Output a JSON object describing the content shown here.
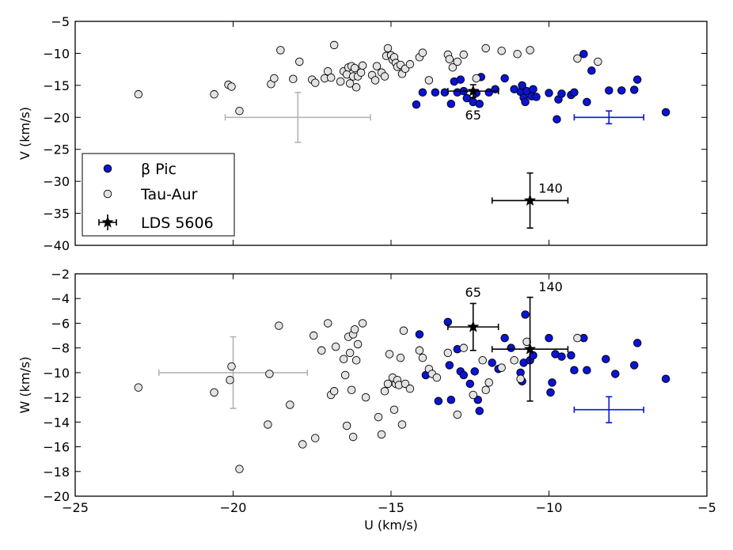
{
  "chart_data": [
    {
      "type": "scatter",
      "panel": "top",
      "xlabel": "",
      "ylabel": "V (km/s)",
      "xlim": [
        -25,
        -5
      ],
      "ylim": [
        -40,
        -5
      ],
      "y_ticks": [
        "−5",
        "−10",
        "−15",
        "−20",
        "−25",
        "−30",
        "−35",
        "−40"
      ],
      "y_tick_values": [
        -5,
        -10,
        -15,
        -20,
        -25,
        -30,
        -35,
        -40
      ],
      "grid": false,
      "legend_position": "lower-left",
      "series": [
        {
          "name": "β Pic",
          "color": "#0a14d2",
          "marker": "circle",
          "points": [
            [
              -14.2,
              -18.0
            ],
            [
              -14.0,
              -16.1
            ],
            [
              -13.6,
              -16.1
            ],
            [
              -13.3,
              -16.1
            ],
            [
              -13.1,
              -17.9
            ],
            [
              -13.0,
              -14.4
            ],
            [
              -12.9,
              -16.1
            ],
            [
              -12.8,
              -14.1
            ],
            [
              -12.7,
              -15.9
            ],
            [
              -12.6,
              -17.0
            ],
            [
              -12.4,
              -17.6
            ],
            [
              -12.3,
              -16.2
            ],
            [
              -12.2,
              -17.9
            ],
            [
              -12.15,
              -13.7
            ],
            [
              -11.9,
              -16.1
            ],
            [
              -11.7,
              -15.6
            ],
            [
              -11.4,
              -13.9
            ],
            [
              -11.1,
              -15.6
            ],
            [
              -10.9,
              -16.0
            ],
            [
              -10.85,
              -15.0
            ],
            [
              -10.8,
              -16.9
            ],
            [
              -10.75,
              -17.6
            ],
            [
              -10.7,
              -15.9
            ],
            [
              -10.55,
              -16.7
            ],
            [
              -10.5,
              -15.6
            ],
            [
              -10.4,
              -16.8
            ],
            [
              -10.0,
              -16.2
            ],
            [
              -9.75,
              -20.3
            ],
            [
              -9.7,
              -17.2
            ],
            [
              -9.6,
              -16.3
            ],
            [
              -9.3,
              -16.5
            ],
            [
              -9.2,
              -16.1
            ],
            [
              -8.9,
              -10.1
            ],
            [
              -8.8,
              -17.6
            ],
            [
              -8.65,
              -12.7
            ],
            [
              -8.1,
              -15.8
            ],
            [
              -7.7,
              -15.8
            ],
            [
              -7.3,
              -15.7
            ],
            [
              -7.2,
              -14.1
            ],
            [
              -6.3,
              -19.2
            ]
          ]
        },
        {
          "name": "Tau-Aur",
          "color": "#e3e3e3",
          "marker": "circle",
          "points": [
            [
              -23.0,
              -16.4
            ],
            [
              -20.6,
              -16.4
            ],
            [
              -20.15,
              -14.9
            ],
            [
              -20.05,
              -15.2
            ],
            [
              -19.8,
              -19.0
            ],
            [
              -18.8,
              -14.8
            ],
            [
              -18.7,
              -13.9
            ],
            [
              -18.5,
              -9.5
            ],
            [
              -18.1,
              -14.0
            ],
            [
              -17.9,
              -11.3
            ],
            [
              -17.5,
              -14.1
            ],
            [
              -17.4,
              -14.6
            ],
            [
              -17.1,
              -13.9
            ],
            [
              -17.0,
              -12.8
            ],
            [
              -16.9,
              -13.8
            ],
            [
              -16.8,
              -8.7
            ],
            [
              -16.6,
              -14.4
            ],
            [
              -16.5,
              -12.8
            ],
            [
              -16.4,
              -13.3
            ],
            [
              -16.35,
              -12.2
            ],
            [
              -16.3,
              -14.7
            ],
            [
              -16.25,
              -12.0
            ],
            [
              -16.2,
              -13.6
            ],
            [
              -16.15,
              -12.3
            ],
            [
              -16.1,
              -15.3
            ],
            [
              -16.05,
              -13.6
            ],
            [
              -15.95,
              -13.0
            ],
            [
              -15.9,
              -11.9
            ],
            [
              -15.6,
              -13.4
            ],
            [
              -15.5,
              -14.2
            ],
            [
              -15.45,
              -12.0
            ],
            [
              -15.3,
              -13.0
            ],
            [
              -15.2,
              -13.6
            ],
            [
              -15.15,
              -10.4
            ],
            [
              -15.1,
              -9.2
            ],
            [
              -15.0,
              -10.3
            ],
            [
              -14.95,
              -11.0
            ],
            [
              -14.9,
              -10.6
            ],
            [
              -14.85,
              -11.5
            ],
            [
              -14.8,
              -12.1
            ],
            [
              -14.7,
              -11.8
            ],
            [
              -14.65,
              -13.2
            ],
            [
              -14.55,
              -12.4
            ],
            [
              -14.4,
              -11.7
            ],
            [
              -14.1,
              -10.6
            ],
            [
              -14.0,
              -9.9
            ],
            [
              -13.8,
              -14.2
            ],
            [
              -13.2,
              -10.2
            ],
            [
              -13.15,
              -10.9
            ],
            [
              -13.05,
              -12.2
            ],
            [
              -12.9,
              -11.3
            ],
            [
              -12.7,
              -10.2
            ],
            [
              -12.3,
              -13.9
            ],
            [
              -12.0,
              -9.2
            ],
            [
              -11.5,
              -9.6
            ],
            [
              -11.0,
              -10.1
            ],
            [
              -10.6,
              -9.5
            ],
            [
              -9.1,
              -10.8
            ],
            [
              -8.45,
              -11.3
            ]
          ]
        },
        {
          "name": "LDS 5606",
          "color": "#000000",
          "marker": "star",
          "points": [
            {
              "x": -12.4,
              "y": -15.9,
              "xerr": 0.8,
              "yerr": 1.0,
              "label": "65"
            },
            {
              "x": -10.6,
              "y": -33.0,
              "xerr": 1.2,
              "yerr": 4.3,
              "label": "140"
            }
          ]
        }
      ],
      "reference_error_bars": [
        {
          "color": "#b4b4b4",
          "x": -17.95,
          "y": -20.0,
          "xerr": 2.3,
          "yerr": 3.9
        },
        {
          "color": "#0a14d2",
          "x": -8.1,
          "y": -20.0,
          "xerr": 1.1,
          "yerr": 1.0
        }
      ]
    },
    {
      "type": "scatter",
      "panel": "bottom",
      "xlabel": "U (km/s)",
      "ylabel": "W (km/s)",
      "xlim": [
        -25,
        -5
      ],
      "ylim": [
        -20,
        -2
      ],
      "x_ticks": [
        "−25",
        "−20",
        "−15",
        "−10",
        "−5"
      ],
      "x_tick_values": [
        -25,
        -20,
        -15,
        -10,
        -5
      ],
      "y_ticks": [
        "−2",
        "−4",
        "−6",
        "−8",
        "−10",
        "−12",
        "−14",
        "−16",
        "−18",
        "−20"
      ],
      "y_tick_values": [
        -2,
        -4,
        -6,
        -8,
        -10,
        -12,
        -14,
        -16,
        -18,
        -20
      ],
      "grid": false,
      "series": [
        {
          "name": "β Pic",
          "color": "#0a14d2",
          "marker": "circle",
          "points": [
            [
              -14.1,
              -6.9
            ],
            [
              -13.9,
              -10.2
            ],
            [
              -13.5,
              -12.3
            ],
            [
              -13.2,
              -5.9
            ],
            [
              -13.15,
              -9.4
            ],
            [
              -13.1,
              -12.2
            ],
            [
              -12.9,
              -8.1
            ],
            [
              -12.8,
              -9.9
            ],
            [
              -12.7,
              -10.2
            ],
            [
              -12.5,
              -10.9
            ],
            [
              -12.35,
              -9.9
            ],
            [
              -12.25,
              -12.2
            ],
            [
              -12.2,
              -13.1
            ],
            [
              -11.8,
              -9.2
            ],
            [
              -11.6,
              -9.7
            ],
            [
              -11.4,
              -7.2
            ],
            [
              -11.2,
              -8.0
            ],
            [
              -10.9,
              -10.0
            ],
            [
              -10.85,
              -10.7
            ],
            [
              -10.8,
              -9.2
            ],
            [
              -10.75,
              -5.3
            ],
            [
              -10.6,
              -9.0
            ],
            [
              -10.5,
              -8.6
            ],
            [
              -10.0,
              -7.2
            ],
            [
              -9.95,
              -11.6
            ],
            [
              -9.9,
              -10.8
            ],
            [
              -9.8,
              -8.5
            ],
            [
              -9.6,
              -8.7
            ],
            [
              -9.3,
              -8.6
            ],
            [
              -9.2,
              -9.8
            ],
            [
              -8.9,
              -7.2
            ],
            [
              -8.8,
              -9.8
            ],
            [
              -8.2,
              -8.9
            ],
            [
              -7.9,
              -10.1
            ],
            [
              -7.3,
              -9.4
            ],
            [
              -7.2,
              -7.6
            ],
            [
              -6.3,
              -10.5
            ]
          ]
        },
        {
          "name": "Tau-Aur",
          "color": "#e3e3e3",
          "marker": "circle",
          "points": [
            [
              -23.0,
              -11.2
            ],
            [
              -20.6,
              -11.6
            ],
            [
              -20.1,
              -10.6
            ],
            [
              -20.05,
              -9.5
            ],
            [
              -19.8,
              -17.8
            ],
            [
              -18.85,
              -10.1
            ],
            [
              -18.9,
              -14.2
            ],
            [
              -18.55,
              -6.2
            ],
            [
              -18.2,
              -12.6
            ],
            [
              -17.8,
              -15.8
            ],
            [
              -17.4,
              -15.3
            ],
            [
              -17.45,
              -7.0
            ],
            [
              -17.2,
              -8.2
            ],
            [
              -17.0,
              -6.0
            ],
            [
              -16.9,
              -11.8
            ],
            [
              -16.8,
              -11.5
            ],
            [
              -16.75,
              -7.9
            ],
            [
              -16.5,
              -8.9
            ],
            [
              -16.45,
              -10.2
            ],
            [
              -16.4,
              -14.3
            ],
            [
              -16.35,
              -7.1
            ],
            [
              -16.3,
              -8.4
            ],
            [
              -16.25,
              -11.4
            ],
            [
              -16.2,
              -15.2
            ],
            [
              -16.2,
              -6.9
            ],
            [
              -16.15,
              -6.5
            ],
            [
              -16.1,
              -9.0
            ],
            [
              -16.05,
              -7.7
            ],
            [
              -15.9,
              -6.0
            ],
            [
              -15.8,
              -12.0
            ],
            [
              -15.4,
              -13.6
            ],
            [
              -15.3,
              -15.0
            ],
            [
              -15.2,
              -11.5
            ],
            [
              -15.1,
              -10.9
            ],
            [
              -15.05,
              -8.5
            ],
            [
              -14.95,
              -10.4
            ],
            [
              -14.9,
              -13.0
            ],
            [
              -14.85,
              -10.9
            ],
            [
              -14.8,
              -10.6
            ],
            [
              -14.75,
              -11.0
            ],
            [
              -14.7,
              -8.8
            ],
            [
              -14.65,
              -14.2
            ],
            [
              -14.6,
              -6.6
            ],
            [
              -14.55,
              -10.9
            ],
            [
              -14.4,
              -11.3
            ],
            [
              -14.1,
              -8.2
            ],
            [
              -14.0,
              -8.8
            ],
            [
              -13.8,
              -9.7
            ],
            [
              -13.7,
              -10.1
            ],
            [
              -13.55,
              -10.4
            ],
            [
              -13.2,
              -8.4
            ],
            [
              -12.9,
              -13.4
            ],
            [
              -12.7,
              -8.0
            ],
            [
              -12.4,
              -11.8
            ],
            [
              -12.1,
              -9.0
            ],
            [
              -12.0,
              -11.4
            ],
            [
              -11.9,
              -10.8
            ],
            [
              -11.5,
              -9.6
            ],
            [
              -11.1,
              -9.0
            ],
            [
              -10.9,
              -10.5
            ],
            [
              -10.7,
              -7.5
            ],
            [
              -9.1,
              -7.2
            ]
          ]
        },
        {
          "name": "LDS 5606",
          "color": "#000000",
          "marker": "star",
          "points": [
            {
              "x": -12.4,
              "y": -6.3,
              "xerr": 0.8,
              "yerr": 1.9,
              "label": "65"
            },
            {
              "x": -10.6,
              "y": -8.1,
              "xerr": 1.2,
              "yerr": 4.2,
              "label": "140"
            }
          ]
        }
      ],
      "reference_error_bars": [
        {
          "color": "#b4b4b4",
          "x": -20.0,
          "y": -10.0,
          "xerr": 2.35,
          "yerr": 2.9
        },
        {
          "color": "#0a14d2",
          "x": -8.1,
          "y": -13.0,
          "xerr": 1.1,
          "yerr": 1.05
        }
      ]
    }
  ]
}
